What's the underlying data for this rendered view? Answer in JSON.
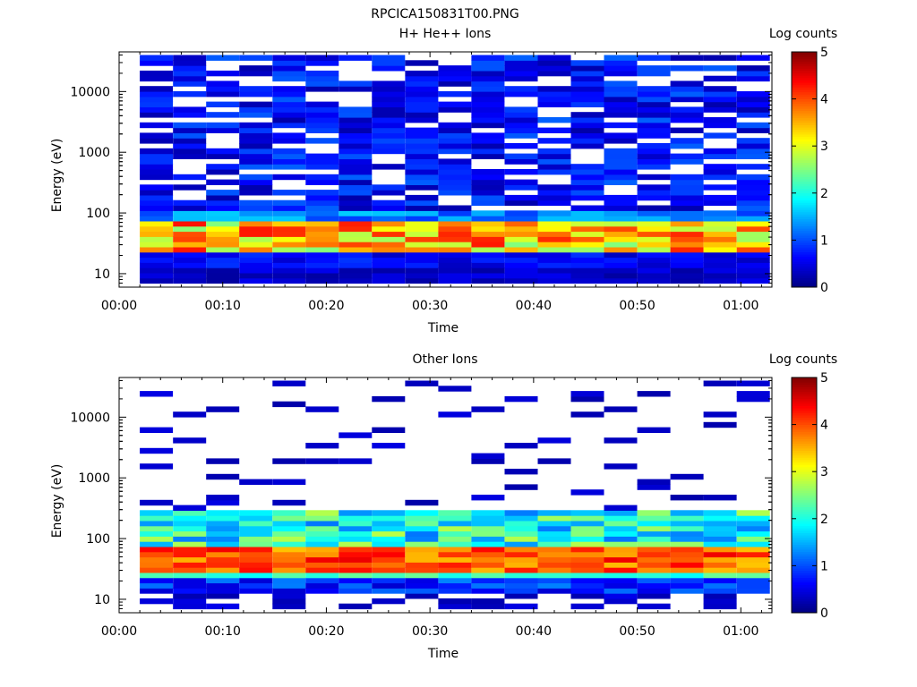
{
  "figure_title": "RPCICA150831T00.PNG",
  "colors": {
    "colormap": "jet",
    "fill_value": "#ffffff",
    "background": "#ffffff",
    "axis": "#000000"
  },
  "chart_data": [
    {
      "type": "heatmap",
      "title": "H+ He++ Ions",
      "xlabel": "Time",
      "ylabel": "Energy (eV)",
      "yscale": "log",
      "ylim": [
        6,
        45000
      ],
      "xlim": [
        "00:00",
        "01:03"
      ],
      "x_ticks": [
        "00:00",
        "00:10",
        "00:20",
        "00:30",
        "00:40",
        "00:50",
        "01:00"
      ],
      "y_ticks": [
        "10",
        "100",
        "1000",
        "10000"
      ],
      "time_bins": [
        "00:02",
        "00:05",
        "00:08",
        "00:11",
        "00:14",
        "00:18",
        "00:21",
        "00:24",
        "00:27",
        "00:30",
        "00:34",
        "00:37",
        "00:40",
        "00:43",
        "00:46",
        "00:49",
        "00:53",
        "00:56",
        "00:59",
        "01:02"
      ],
      "colorbar": {
        "label": "Log counts",
        "min": 0,
        "max": 5,
        "ticks": [
          "0",
          "1",
          "2",
          "3",
          "4",
          "5"
        ]
      },
      "profile_note": "peak log counts ~4-4.5 near 30-60 eV; sparse low counts (~0.3-1) above 100 eV",
      "peak_log_counts": 4.5,
      "peak_energy_eV": 40
    },
    {
      "type": "heatmap",
      "title": "Other Ions",
      "xlabel": "Time",
      "ylabel": "Energy (eV)",
      "yscale": "log",
      "ylim": [
        6,
        45000
      ],
      "xlim": [
        "00:00",
        "01:03"
      ],
      "x_ticks": [
        "00:00",
        "00:10",
        "00:20",
        "00:30",
        "00:40",
        "00:50",
        "01:00"
      ],
      "y_ticks": [
        "10",
        "100",
        "1000",
        "10000"
      ],
      "colorbar": {
        "label": "Log counts",
        "min": 0,
        "max": 5,
        "ticks": [
          "0",
          "1",
          "2",
          "3",
          "4",
          "5"
        ]
      },
      "peak_log_counts": 4.5,
      "peak_energy_eV": 45
    }
  ]
}
